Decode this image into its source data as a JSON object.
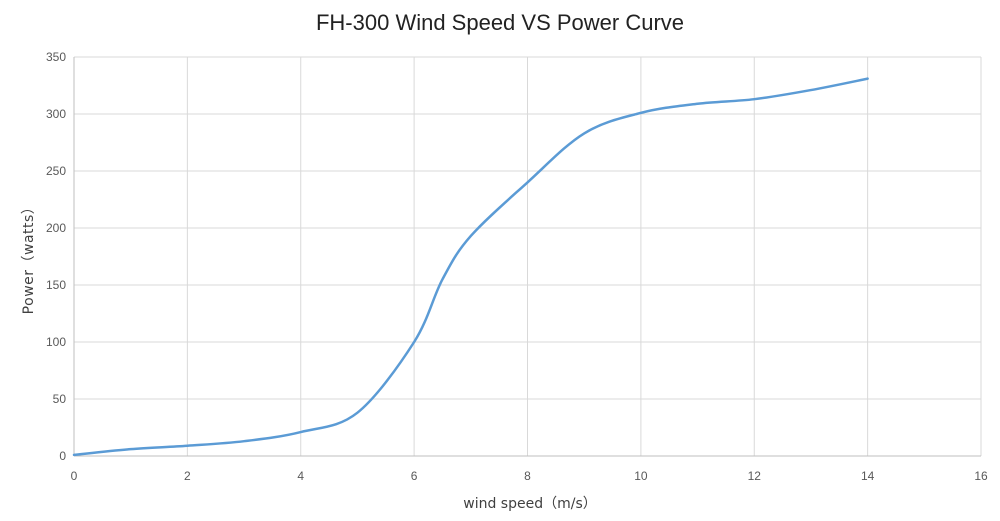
{
  "chart_data": {
    "type": "line",
    "title": "FH-300 Wind Speed VS Power Curve",
    "xlabel": "wind speed（m/s）",
    "ylabel": "Power（watts）",
    "xlim": [
      0,
      16
    ],
    "ylim": [
      0,
      350
    ],
    "x_ticks": [
      0,
      2,
      4,
      6,
      8,
      10,
      12,
      14,
      16
    ],
    "y_ticks": [
      0,
      50,
      100,
      150,
      200,
      250,
      300,
      350
    ],
    "grid": true,
    "legend": "none",
    "series": [
      {
        "color": "#5b9bd5",
        "x": [
          0,
          1,
          2,
          3,
          4,
          5,
          6,
          6.5,
          7,
          8,
          9,
          10,
          11,
          12,
          13,
          14
        ],
        "values": [
          1,
          6,
          9,
          13,
          21,
          38,
          100,
          155,
          193,
          240,
          283,
          301,
          309,
          313,
          321,
          331
        ]
      }
    ]
  }
}
